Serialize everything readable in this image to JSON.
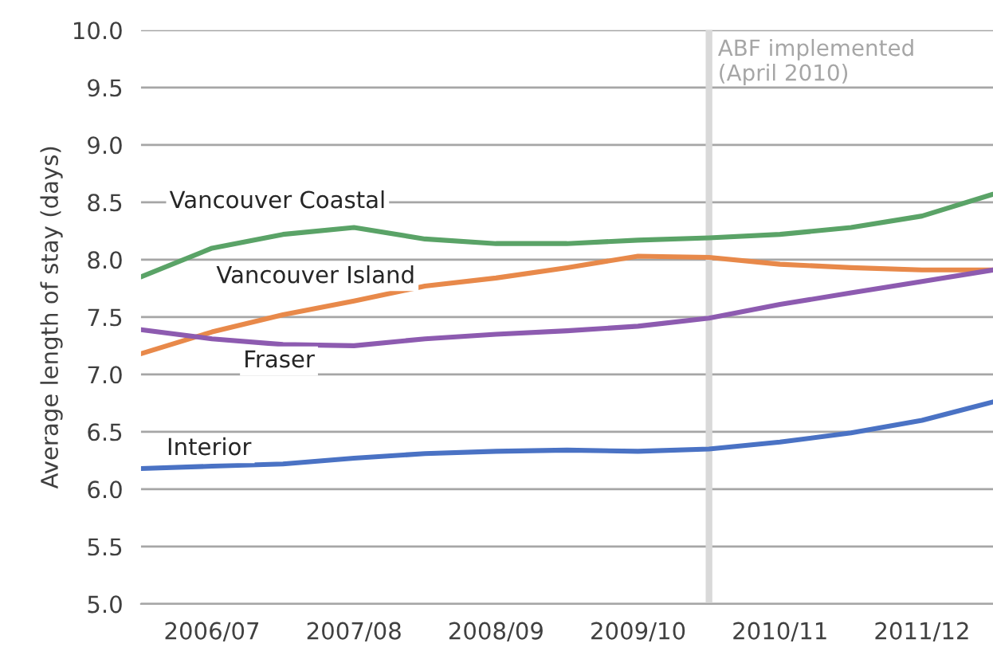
{
  "chart_data": {
    "type": "line",
    "ylabel": "Average length of stay (days)",
    "categories": [
      null,
      "2006/07",
      null,
      "2007/08",
      null,
      "2008/09",
      null,
      "2009/10",
      null,
      "2010/11",
      null,
      "2011/12",
      null
    ],
    "ylim": [
      5,
      10
    ],
    "yticks": [
      {
        "value": 5,
        "label": "5.0"
      },
      {
        "value": 5.5,
        "label": "5.5"
      },
      {
        "value": 6,
        "label": "6.0"
      },
      {
        "value": 6.5,
        "label": "6.5"
      },
      {
        "value": 7,
        "label": "7.0"
      },
      {
        "value": 7.5,
        "label": "7.5"
      },
      {
        "value": 8,
        "label": "8.0"
      },
      {
        "value": 8.5,
        "label": "8.5"
      },
      {
        "value": 9,
        "label": "9.0"
      },
      {
        "value": 9.5,
        "label": "9.5"
      },
      {
        "value": 10,
        "label": "10.0"
      }
    ],
    "grid": "y",
    "series": [
      {
        "name": "Vancouver Coastal",
        "color": "#5aa367",
        "values": [
          7.85,
          8.1,
          8.22,
          8.28,
          8.18,
          8.14,
          8.14,
          8.17,
          8.19,
          8.22,
          8.28,
          8.38,
          8.57
        ]
      },
      {
        "name": "Vancouver Island",
        "color": "#e8894a",
        "values": [
          7.18,
          7.37,
          7.52,
          7.64,
          7.77,
          7.84,
          7.93,
          8.03,
          8.02,
          7.96,
          7.93,
          7.91,
          7.91
        ]
      },
      {
        "name": "Fraser",
        "color": "#8d5bb0",
        "values": [
          7.39,
          7.31,
          7.26,
          7.25,
          7.31,
          7.35,
          7.38,
          7.42,
          7.49,
          7.61,
          7.71,
          7.81,
          7.91
        ]
      },
      {
        "name": "Interior",
        "color": "#4a72c4",
        "values": [
          6.18,
          6.2,
          6.22,
          6.27,
          6.31,
          6.33,
          6.34,
          6.33,
          6.35,
          6.41,
          6.49,
          6.6,
          6.76
        ]
      }
    ],
    "annotations": [
      "ABF implemented\n(April 2010)"
    ]
  }
}
